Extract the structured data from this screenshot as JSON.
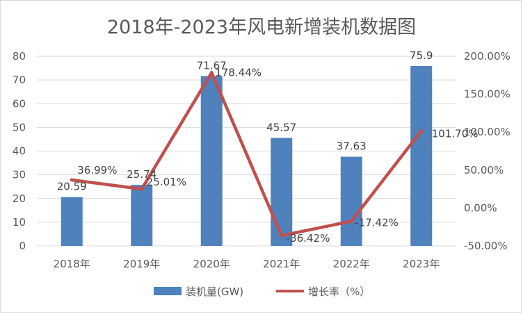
{
  "chart_data": {
    "type": "bar",
    "title": "2018年-2023年风电新增装机数据图",
    "categories": [
      "2018年",
      "2019年",
      "2020年",
      "2021年",
      "2022年",
      "2023年"
    ],
    "series": [
      {
        "name": "装机量(GW)",
        "type": "bar",
        "axis": "left",
        "color": "#4f81bd",
        "values": [
          20.59,
          25.74,
          71.67,
          45.57,
          37.63,
          75.9
        ],
        "labels": [
          "20.59",
          "25.74",
          "71.67",
          "45.57",
          "37.63",
          "75.9"
        ]
      },
      {
        "name": "增长率（%）",
        "type": "line",
        "axis": "right",
        "color": "#c0504d",
        "values": [
          36.99,
          25.01,
          178.44,
          -36.42,
          -17.42,
          101.7
        ],
        "labels": [
          "36.99%",
          "25.01%",
          "178.44%",
          "-36.42%",
          "-17.42%",
          "101.70%"
        ]
      }
    ],
    "y_left": {
      "min": 0,
      "max": 80,
      "step": 10,
      "ticks": [
        "0",
        "10",
        "20",
        "30",
        "40",
        "50",
        "60",
        "70",
        "80"
      ]
    },
    "y_right": {
      "min": -50,
      "max": 200,
      "step": 50,
      "ticks": [
        "-50.00%",
        "0.00%",
        "50.00%",
        "100.00%",
        "150.00%",
        "200.00%"
      ]
    },
    "grid": true,
    "legend": "bottom"
  }
}
